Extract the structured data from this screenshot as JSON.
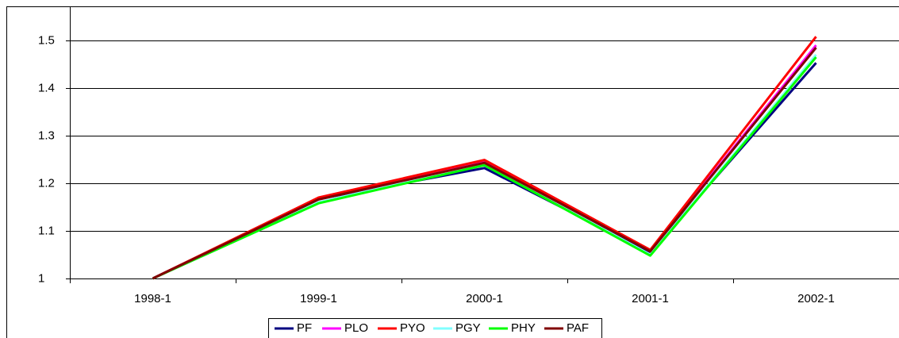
{
  "chart_data": {
    "type": "line",
    "categories": [
      "1998-1",
      "1999-1",
      "2000-1",
      "2001-1",
      "2002-1"
    ],
    "series": [
      {
        "name": "PF",
        "color": "#000080",
        "values": [
          1,
          1.167,
          1.232,
          1.055,
          1.453
        ]
      },
      {
        "name": "PLO",
        "color": "#ff00ff",
        "values": [
          1,
          1.168,
          1.245,
          1.058,
          1.49
        ]
      },
      {
        "name": "PYO",
        "color": "#ff0000",
        "values": [
          1,
          1.17,
          1.249,
          1.06,
          1.508
        ]
      },
      {
        "name": "PGY",
        "color": "#80ffff",
        "values": [
          1,
          1.16,
          1.24,
          1.05,
          1.47
        ]
      },
      {
        "name": "PHY",
        "color": "#00ff00",
        "values": [
          1,
          1.158,
          1.238,
          1.048,
          1.465
        ]
      },
      {
        "name": "PAF",
        "color": "#800000",
        "values": [
          1,
          1.166,
          1.243,
          1.057,
          1.485
        ]
      }
    ],
    "ylim": [
      1,
      1.5
    ],
    "yticks": [
      1,
      1.1,
      1.2,
      1.3,
      1.4,
      1.5
    ],
    "grid": true,
    "legend": "bottom"
  }
}
